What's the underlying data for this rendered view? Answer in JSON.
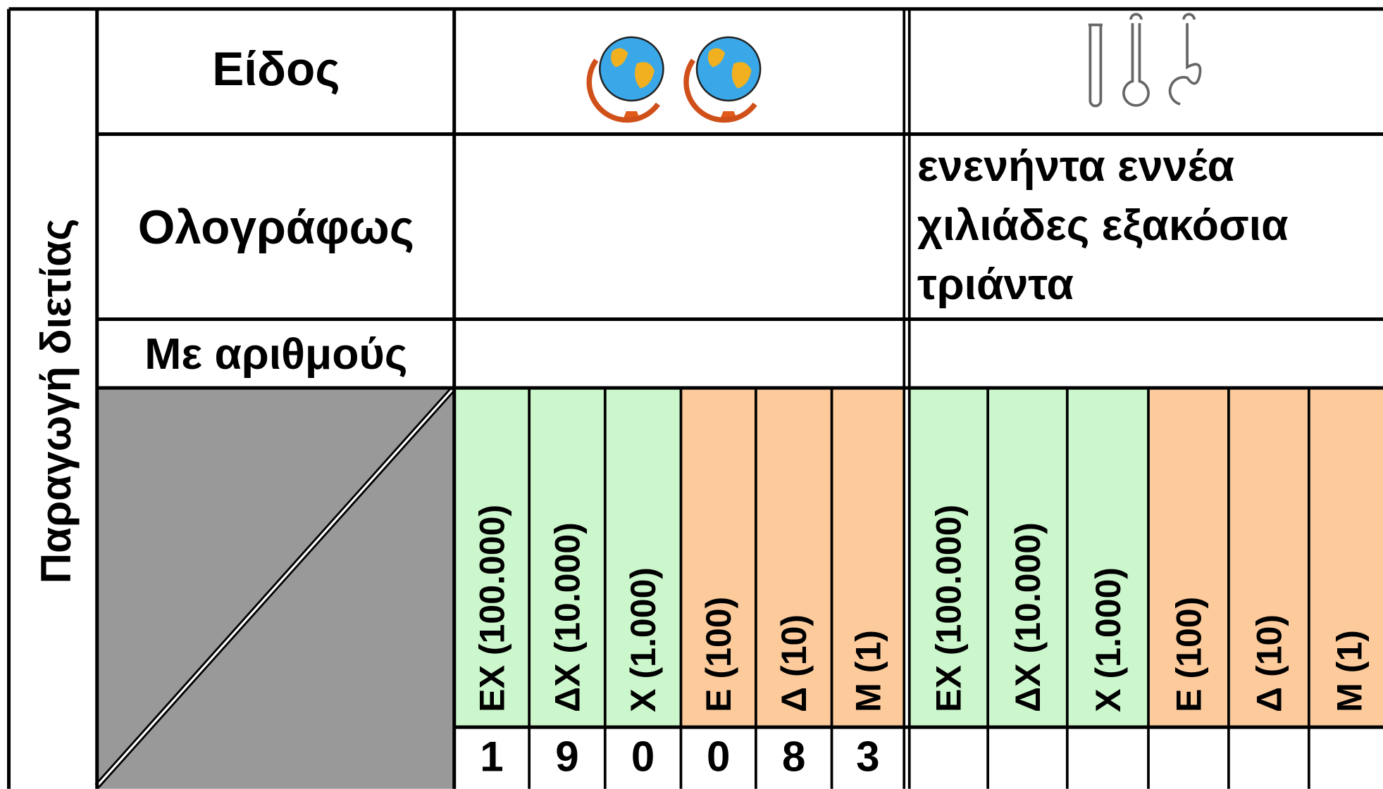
{
  "left_label": "Παραγωγή διετίας",
  "row_labels": [
    "Είδος",
    "Ολογράφως",
    "Με αριθμούς"
  ],
  "columns": [
    {
      "place_values": [
        "ΕΧ (100.000)",
        "ΔΧ (10.000)",
        "Χ (1.000)",
        "Ε (100)",
        "Δ (10)",
        "Μ (1)"
      ],
      "digits": [
        1,
        9,
        0,
        0,
        8,
        3
      ]
    },
    {
      "written_lines": [
        "ενενήντα εννέα",
        "χιλιάδες εξακόσια",
        "τριάντα"
      ],
      "place_values": [
        "ΕΧ (100.000)",
        "ΔΧ (10.000)",
        "Χ (1.000)",
        "Ε (100)",
        "Δ (10)",
        "Μ (1)"
      ]
    }
  ]
}
